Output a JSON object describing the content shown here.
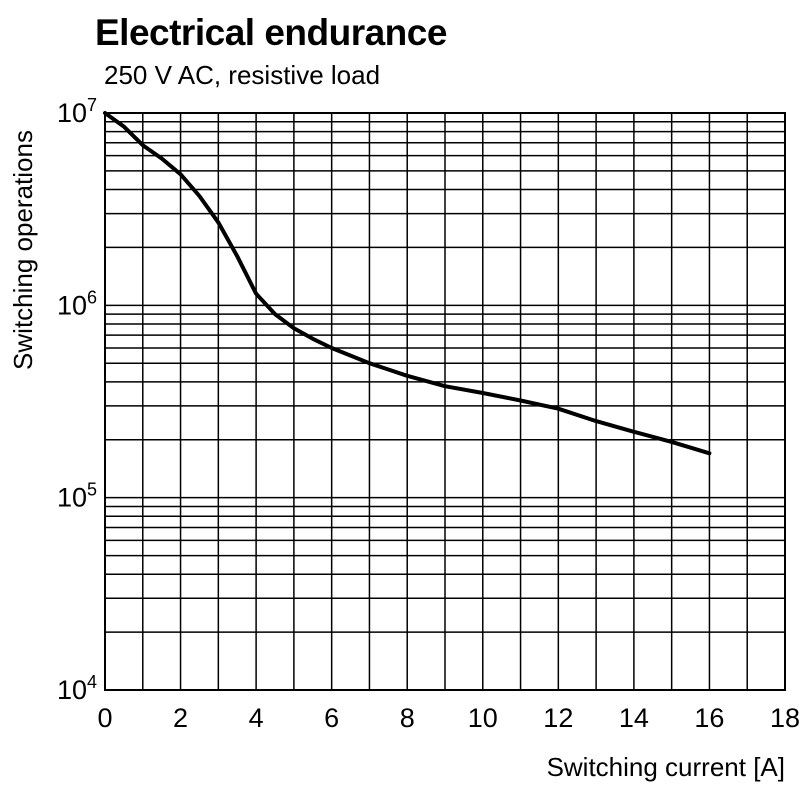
{
  "chart_data": {
    "type": "line",
    "title": "Electrical endurance",
    "subtitle": "250 V AC, resistive load",
    "xlabel": "Switching current [A]",
    "ylabel": "Switching operations",
    "xlim": [
      0,
      18
    ],
    "ylim": [
      10000,
      10000000
    ],
    "x_scale": "linear",
    "y_scale": "log",
    "x_ticks": [
      0,
      2,
      4,
      6,
      8,
      10,
      12,
      14,
      16,
      18
    ],
    "x_grid_step": 1,
    "y_tick_exponents": [
      7,
      6,
      5,
      4
    ],
    "grid": "major-and-log-minor",
    "background_color": "#ffffff",
    "grid_color": "#000000",
    "line_color": "#000000",
    "line_width": 4,
    "series": [
      {
        "name": "electrical-endurance-curve",
        "x": [
          0,
          0.5,
          1,
          1.5,
          2,
          2.5,
          3,
          3.5,
          4,
          4.5,
          5,
          5.5,
          6,
          7,
          8,
          9,
          10,
          11,
          12,
          13,
          14,
          15,
          16
        ],
        "y": [
          10000000,
          8500000,
          6800000,
          5800000,
          4800000,
          3700000,
          2700000,
          1800000,
          1150000,
          900000,
          760000,
          670000,
          600000,
          500000,
          430000,
          380000,
          350000,
          320000,
          290000,
          250000,
          220000,
          195000,
          170000
        ]
      }
    ]
  }
}
